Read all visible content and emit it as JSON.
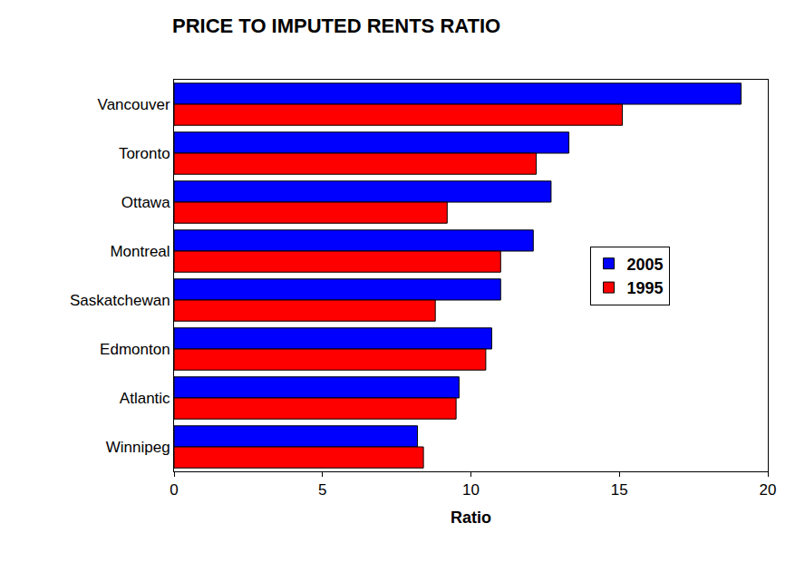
{
  "chart_data": {
    "type": "bar",
    "orientation": "horizontal",
    "title": "PRICE TO IMPUTED RENTS RATIO",
    "x_label": "Ratio",
    "categories": [
      "Vancouver",
      "Toronto",
      "Ottawa",
      "Montreal",
      "Saskatchewan",
      "Edmonton",
      "Atlantic",
      "Winnipeg"
    ],
    "series": [
      {
        "name": "2005",
        "color": "#0000ff",
        "values": [
          19.1,
          13.3,
          12.7,
          12.1,
          11.0,
          10.7,
          9.6,
          8.2
        ]
      },
      {
        "name": "1995",
        "color": "#ff0000",
        "values": [
          15.1,
          12.2,
          9.2,
          11.0,
          8.8,
          10.5,
          9.5,
          8.4
        ]
      }
    ],
    "xlim": [
      0,
      20
    ],
    "xticks": [
      0,
      5,
      10,
      15,
      20
    ],
    "grid": false,
    "legend": "right"
  }
}
